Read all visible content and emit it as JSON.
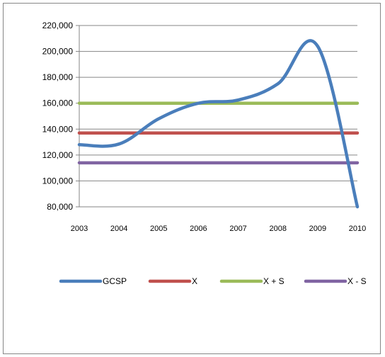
{
  "chart_data": {
    "type": "line",
    "title": "",
    "xlabel": "",
    "ylabel": "",
    "x": [
      "2003",
      "2004",
      "2005",
      "2006",
      "2007",
      "2008",
      "2009",
      "2010"
    ],
    "y_ticks": [
      "80,000",
      "100,000",
      "120,000",
      "140,000",
      "160,000",
      "180,000",
      "200,000",
      "220,000"
    ],
    "ylim": [
      80000,
      220000
    ],
    "grid": "horizontal",
    "legend_position": "bottom",
    "series": [
      {
        "name": "GCSP",
        "color": "#4a7ebb",
        "smooth": true,
        "values": [
          128000,
          128500,
          148000,
          160000,
          162500,
          175000,
          204000,
          80000
        ]
      },
      {
        "name": "X",
        "color": "#c0504d",
        "smooth": false,
        "values": [
          137000,
          137000,
          137000,
          137000,
          137000,
          137000,
          137000,
          137000
        ]
      },
      {
        "name": "X + S",
        "color": "#9bbb59",
        "smooth": false,
        "values": [
          160000,
          160000,
          160000,
          160000,
          160000,
          160000,
          160000,
          160000
        ]
      },
      {
        "name": "X - S",
        "color": "#8064a2",
        "smooth": false,
        "values": [
          114000,
          114000,
          114000,
          114000,
          114000,
          114000,
          114000,
          114000
        ]
      }
    ]
  }
}
